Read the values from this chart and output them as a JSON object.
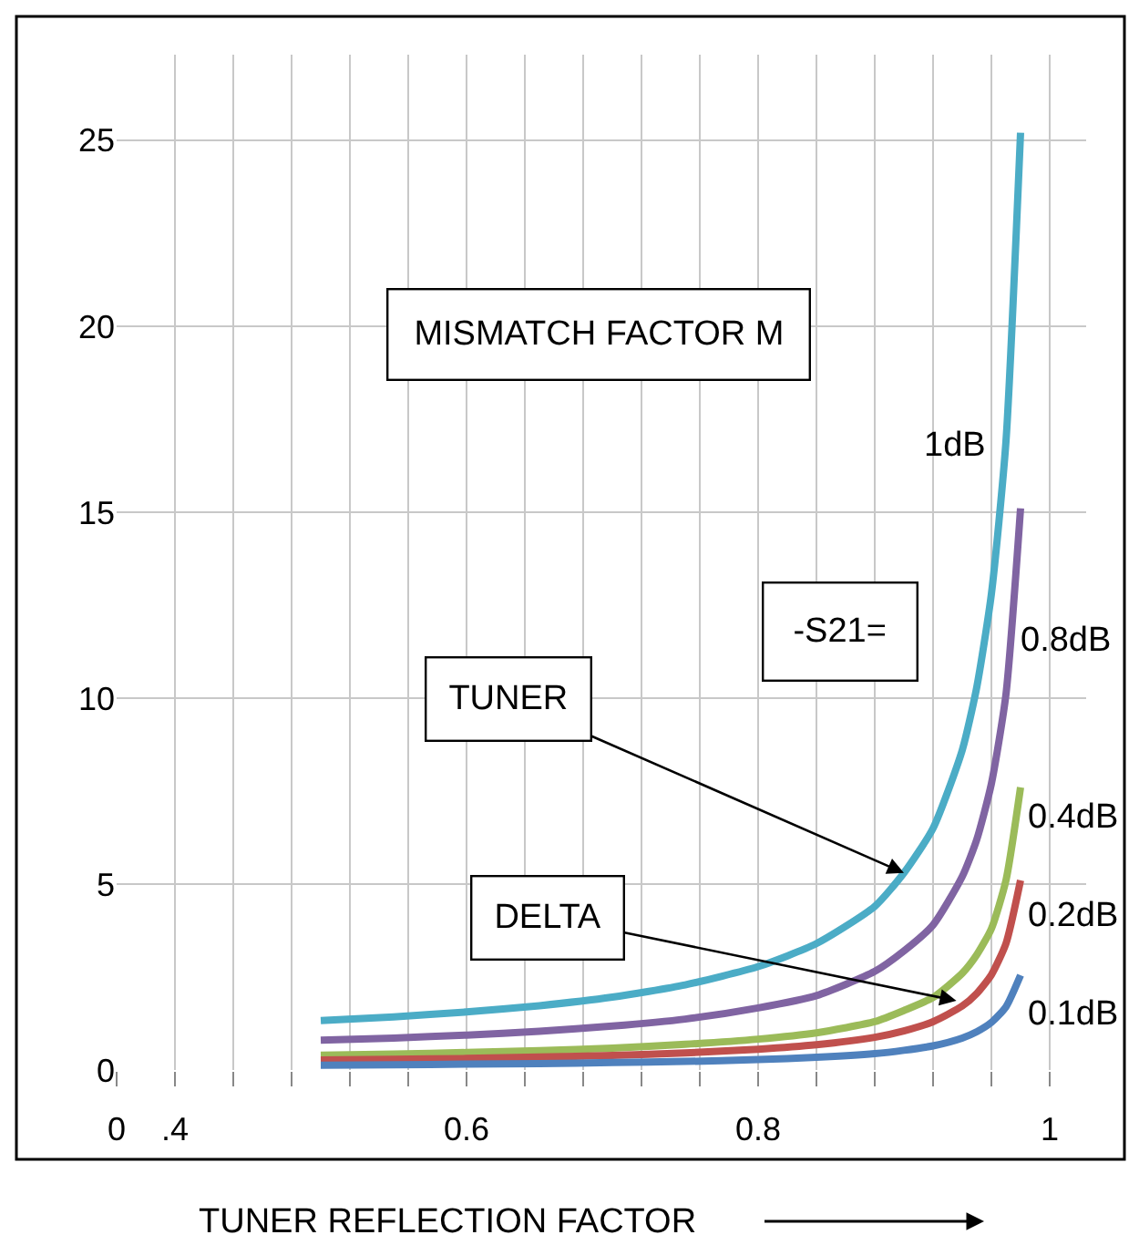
{
  "chart_data": {
    "type": "line",
    "xlabel": "TUNER REFLECTION FACTOR",
    "x": [
      0.5,
      0.55,
      0.6,
      0.65,
      0.7,
      0.75,
      0.8,
      0.84,
      0.88,
      0.9,
      0.92,
      0.94,
      0.95,
      0.96,
      0.97,
      0.98
    ],
    "series": [
      {
        "name": "1dB",
        "color": "#4bacc6",
        "values": [
          1.33,
          1.43,
          1.56,
          1.73,
          1.96,
          2.29,
          2.78,
          3.4,
          4.4,
          5.3,
          6.5,
          8.6,
          10.3,
          12.8,
          16.9,
          25.2
        ]
      },
      {
        "name": "0.8dB",
        "color": "#8064a2",
        "values": [
          0.8,
          0.86,
          0.94,
          1.04,
          1.18,
          1.37,
          1.67,
          2.0,
          2.65,
          3.2,
          3.9,
          5.2,
          6.2,
          7.7,
          10.1,
          15.1
        ]
      },
      {
        "name": "0.4dB",
        "color": "#9bbb59",
        "values": [
          0.4,
          0.43,
          0.47,
          0.52,
          0.59,
          0.69,
          0.83,
          1.0,
          1.3,
          1.6,
          1.95,
          2.6,
          3.1,
          3.8,
          5.1,
          7.6
        ]
      },
      {
        "name": "0.2dB",
        "color": "#c0504d",
        "values": [
          0.27,
          0.29,
          0.31,
          0.35,
          0.39,
          0.46,
          0.56,
          0.68,
          0.88,
          1.05,
          1.3,
          1.72,
          2.06,
          2.56,
          3.4,
          5.1
        ]
      },
      {
        "name": "0.1dB",
        "color": "#4f81bd",
        "values": [
          0.13,
          0.14,
          0.16,
          0.17,
          0.2,
          0.23,
          0.28,
          0.34,
          0.44,
          0.53,
          0.65,
          0.86,
          1.03,
          1.28,
          1.7,
          2.55
        ]
      }
    ],
    "xlim": [
      0.36,
      1.025
    ],
    "ylim": [
      0,
      27.3
    ],
    "xticks": [
      {
        "value": 0.36,
        "label": "0"
      },
      {
        "value": 0.4,
        "label": ".4"
      },
      {
        "value": 0.44,
        "label": null
      },
      {
        "value": 0.48,
        "label": null
      },
      {
        "value": 0.52,
        "label": null
      },
      {
        "value": 0.56,
        "label": null
      },
      0.6,
      {
        "value": 0.64,
        "label": null
      },
      {
        "value": 0.68,
        "label": null
      },
      {
        "value": 0.72,
        "label": null
      },
      {
        "value": 0.76,
        "label": null
      },
      0.8,
      {
        "value": 0.84,
        "label": null
      },
      {
        "value": 0.88,
        "label": null
      },
      {
        "value": 0.92,
        "label": null
      },
      {
        "value": 0.96,
        "label": null
      },
      1
    ],
    "yticks": [
      0,
      5,
      10,
      15,
      20,
      25
    ],
    "grid": true,
    "legend": false,
    "marker": "none",
    "line_style": "solid",
    "annotations": [
      "MISMATCH FACTOR M",
      "-S21=",
      {
        "text": "TUNER",
        "x": 0.9,
        "y": 5.3
      },
      {
        "text": "DELTA",
        "x": 0.936,
        "y": 1.86
      }
    ]
  }
}
